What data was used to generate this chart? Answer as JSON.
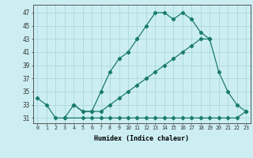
{
  "xlabel": "Humidex (Indice chaleur)",
  "bg_color": "#cceef2",
  "grid_color": "#aad8de",
  "line_color": "#1a7a6e",
  "xlim": [
    -0.5,
    23.5
  ],
  "ylim": [
    30.2,
    48.2
  ],
  "xticks": [
    0,
    1,
    2,
    3,
    4,
    5,
    6,
    7,
    8,
    9,
    10,
    11,
    12,
    13,
    14,
    15,
    16,
    17,
    18,
    19,
    20,
    21,
    22,
    23
  ],
  "yticks": [
    31,
    33,
    35,
    37,
    39,
    41,
    43,
    45,
    47
  ],
  "series": [
    {
      "x": [
        0,
        1,
        2,
        3,
        4,
        5,
        6,
        7,
        8,
        9,
        10,
        11,
        12,
        13,
        14,
        15,
        16,
        17,
        18,
        19,
        20,
        21
      ],
      "y": [
        34,
        33,
        31,
        31,
        33,
        32,
        32,
        35,
        38,
        40,
        41,
        43,
        45,
        47,
        47,
        46,
        47,
        46,
        44,
        43,
        null,
        null
      ]
    },
    {
      "x": [
        3,
        5,
        6,
        7,
        8,
        9,
        10,
        11,
        12,
        13,
        14,
        15,
        16,
        17,
        18,
        19,
        20,
        21,
        22,
        23
      ],
      "y": [
        31,
        31,
        31,
        31,
        31,
        31,
        31,
        31,
        31,
        31,
        31,
        31,
        31,
        31,
        31,
        31,
        31,
        31,
        31,
        32
      ]
    },
    {
      "x": [
        4,
        5,
        6,
        7,
        8,
        9,
        10,
        11,
        12,
        13,
        14,
        15,
        16,
        17,
        18,
        19,
        20,
        21,
        22,
        23
      ],
      "y": [
        33,
        32,
        32,
        32,
        33,
        34,
        35,
        36,
        37,
        38,
        39,
        40,
        41,
        42,
        43,
        43,
        38,
        35,
        33,
        32
      ]
    }
  ]
}
